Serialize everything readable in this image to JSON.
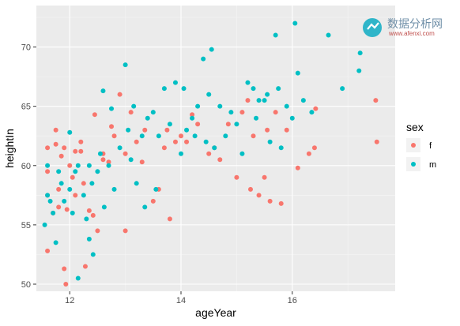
{
  "chart_data": {
    "type": "scatter",
    "title": "",
    "xlabel": "ageYear",
    "ylabel": "heightIn",
    "xlim": [
      11.4,
      17.85
    ],
    "ylim": [
      49.4,
      73.5
    ],
    "x_ticks": [
      12,
      14,
      16
    ],
    "y_ticks": [
      50,
      55,
      60,
      65,
      70
    ],
    "grid": true,
    "legend": {
      "title": "sex",
      "placement": "right"
    },
    "series": [
      {
        "name": "f",
        "color": "#F8766D",
        "x": [
          11.6,
          11.6,
          11.6,
          11.6,
          11.7,
          11.75,
          11.8,
          11.8,
          11.85,
          11.9,
          11.9,
          12.0,
          12.05,
          11.95,
          12.1,
          12.1,
          12.2,
          12.25,
          12.35,
          12.45,
          12.6,
          12.5,
          12.6,
          12.7,
          12.75,
          12.8,
          12.9,
          13.0,
          13.0,
          13.1,
          13.2,
          13.3,
          13.35,
          13.5,
          13.6,
          13.7,
          13.75,
          13.8,
          13.9,
          14.0,
          14.1,
          14.2,
          14.3,
          14.5,
          14.6,
          14.7,
          14.85,
          15.0,
          15.1,
          15.2,
          15.25,
          15.3,
          15.4,
          15.5,
          15.55,
          15.6,
          15.7,
          15.8,
          15.9,
          16.1,
          16.3,
          16.4,
          16.42,
          17.5,
          17.52,
          11.93,
          12.2,
          12.28,
          11.75,
          12.42
        ],
        "y": [
          61.5,
          59.5,
          57.5,
          52.8,
          56.0,
          61.8,
          58.0,
          56.5,
          60.8,
          61.5,
          51.3,
          60.0,
          59.0,
          56.3,
          61.2,
          57.5,
          62.0,
          58.5,
          56.2,
          64.3,
          60.5,
          54.5,
          61.0,
          60.3,
          63.3,
          62.5,
          66.0,
          61.0,
          54.5,
          64.5,
          62.0,
          60.3,
          63.0,
          57.0,
          58.0,
          61.5,
          63.0,
          55.5,
          62.0,
          62.5,
          62.0,
          64.3,
          63.5,
          61.0,
          61.5,
          60.5,
          63.5,
          59.0,
          64.5,
          65.5,
          58.0,
          62.5,
          57.5,
          59.0,
          63.0,
          57.0,
          64.5,
          56.8,
          63.0,
          59.8,
          61.0,
          61.5,
          64.8,
          65.5,
          62.0,
          50.0,
          61.2,
          51.5,
          63.0,
          55.8
        ]
      },
      {
        "name": "m",
        "color": "#00BFC4",
        "x": [
          11.55,
          11.6,
          11.65,
          11.7,
          11.75,
          11.8,
          11.85,
          11.9,
          12.0,
          12.0,
          12.05,
          12.1,
          12.15,
          12.25,
          12.3,
          12.35,
          12.4,
          12.5,
          12.55,
          12.6,
          12.7,
          12.75,
          12.8,
          12.9,
          13.0,
          13.05,
          13.1,
          13.15,
          13.2,
          13.3,
          13.35,
          13.4,
          13.5,
          13.55,
          13.6,
          13.7,
          13.8,
          13.9,
          14.0,
          14.05,
          14.1,
          14.2,
          14.25,
          14.3,
          14.4,
          14.45,
          14.5,
          14.55,
          14.6,
          14.7,
          14.8,
          14.9,
          15.0,
          15.1,
          15.2,
          15.3,
          15.35,
          15.4,
          15.5,
          15.55,
          15.6,
          15.7,
          15.75,
          15.8,
          15.9,
          16.0,
          16.05,
          16.1,
          16.2,
          16.35,
          16.65,
          16.9,
          17.2,
          17.22,
          11.6,
          12.15,
          12.42,
          12.35,
          12.62
        ],
        "y": [
          55.0,
          60.0,
          57.0,
          56.0,
          53.5,
          59.5,
          58.5,
          57.0,
          62.8,
          58.0,
          56.0,
          59.5,
          60.0,
          57.5,
          55.5,
          60.0,
          58.5,
          59.5,
          61.0,
          66.3,
          60.0,
          64.8,
          58.0,
          61.5,
          68.5,
          63.0,
          60.5,
          65.0,
          58.5,
          62.5,
          56.5,
          64.0,
          64.5,
          58.0,
          62.5,
          66.5,
          63.5,
          67.0,
          61.0,
          66.5,
          63.0,
          64.0,
          62.5,
          65.0,
          69.0,
          62.0,
          66.0,
          69.8,
          61.5,
          65.0,
          62.5,
          64.5,
          63.5,
          61.0,
          67.0,
          66.5,
          64.0,
          65.5,
          65.5,
          66.0,
          62.0,
          71.0,
          66.5,
          61.5,
          65.0,
          64.0,
          72.0,
          67.8,
          65.5,
          64.5,
          71.0,
          66.5,
          68.0,
          69.5,
          57.5,
          50.5,
          52.5,
          53.8,
          56.5
        ]
      }
    ]
  },
  "watermark": {
    "title": "数据分析网",
    "url": "www.afenxi.com"
  }
}
